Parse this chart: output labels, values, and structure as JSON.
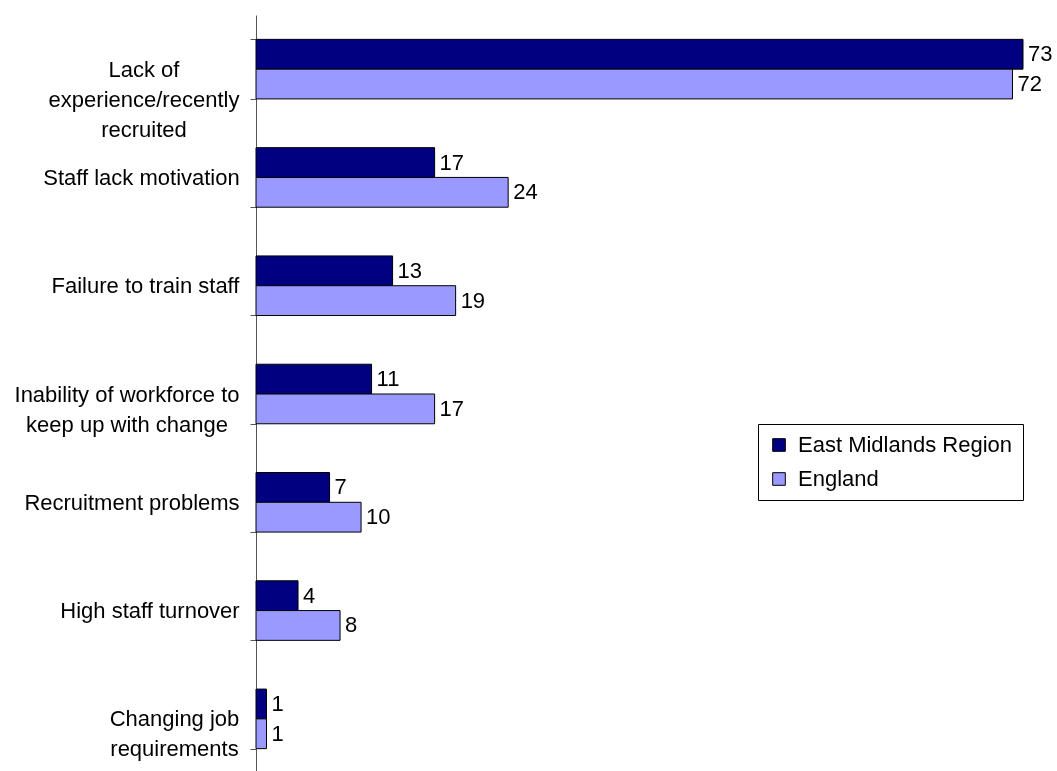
{
  "chart_data": {
    "type": "bar",
    "orientation": "horizontal",
    "categories": [
      "Lack of experience/recently recruited",
      "Staff lack motivation",
      "Failure to train staff",
      "Inability of workforce to keep up with change",
      "Recruitment problems",
      "High staff turnover",
      "Changing job requirements"
    ],
    "series": [
      {
        "name": "East Midlands Region",
        "color": "#000080",
        "values": [
          73,
          17,
          13,
          11,
          7,
          4,
          1
        ]
      },
      {
        "name": "England",
        "color": "#9999ff",
        "values": [
          72,
          24,
          19,
          17,
          10,
          8,
          1
        ]
      }
    ],
    "data_labels": true,
    "legend": "right",
    "tick_labels": "y"
  }
}
